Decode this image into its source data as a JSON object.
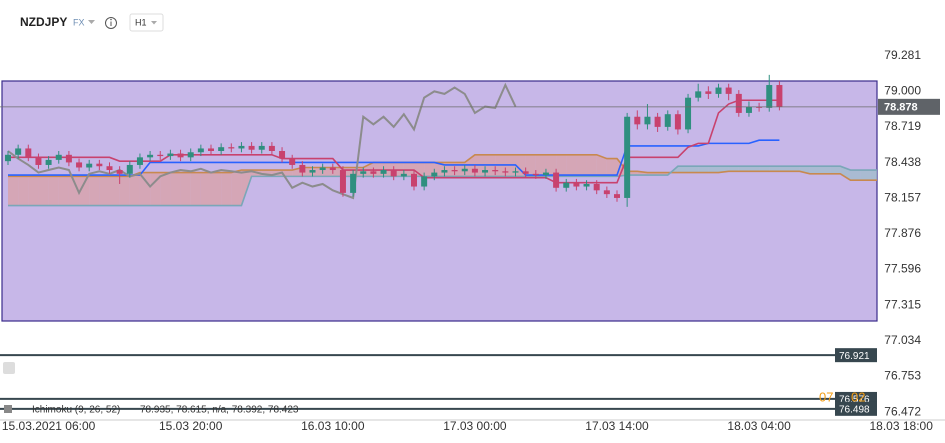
{
  "chart_data": {
    "type": "candlestick",
    "symbol": "NZDJPY",
    "market": "FX",
    "timeframe": "H1",
    "indicator_label": "Ichimoku (9, 26, 52)",
    "indicator_values": "78.935, 78.615, n/a, 78.392, 78.423",
    "countdown": [
      "07",
      "02"
    ],
    "last_price": 78.878,
    "other_levels": [
      76.921,
      76.576,
      76.498
    ],
    "ylim": [
      76.41,
      79.72
    ],
    "yticks": [
      79.281,
      {
        "value": 79.0,
        "label": "79.000"
      },
      78.719,
      78.438,
      78.157,
      77.876,
      77.596,
      77.315,
      77.034,
      76.753,
      76.472
    ],
    "up_color": "#2f8f7f",
    "down_color": "#c8426e",
    "cloud_colors": [
      "#d9a0a6",
      "#9fbccb"
    ],
    "categories": [
      null,
      null,
      null,
      null,
      "15.03.2021 06:00",
      null,
      null,
      null,
      null,
      null,
      null,
      null,
      null,
      null,
      null,
      null,
      null,
      null,
      "15.03 20:00",
      null,
      null,
      null,
      null,
      null,
      null,
      null,
      null,
      null,
      null,
      null,
      null,
      null,
      "16.03 10:00",
      null,
      null,
      null,
      null,
      null,
      null,
      null,
      null,
      null,
      null,
      null,
      null,
      null,
      "17.03 00:00",
      null,
      null,
      null,
      null,
      null,
      null,
      null,
      null,
      null,
      null,
      null,
      null,
      null,
      "17.03 14:00",
      null,
      null,
      null,
      null,
      null,
      null,
      null,
      null,
      null,
      null,
      null,
      null,
      null,
      "18.03 04:00",
      null,
      null,
      null,
      null,
      null,
      null,
      null,
      null,
      null,
      null,
      null,
      null,
      null,
      "18.03 18:00"
    ],
    "open": [
      78.45,
      78.5,
      78.55,
      78.48,
      78.42,
      78.46,
      78.5,
      78.44,
      78.4,
      78.43,
      78.41,
      78.38,
      78.35,
      78.42,
      78.48,
      78.5,
      78.49,
      78.51,
      78.48,
      78.52,
      78.55,
      78.53,
      78.56,
      78.55,
      78.57,
      78.54,
      78.57,
      78.53,
      78.47,
      78.42,
      78.36,
      78.38,
      78.4,
      78.38,
      78.2,
      78.35,
      78.37,
      78.35,
      78.38,
      78.33,
      78.35,
      78.25,
      78.33,
      78.36,
      78.38,
      78.37,
      78.39,
      78.36,
      78.38,
      78.37,
      78.36,
      78.37,
      78.35,
      78.34,
      78.36,
      78.24,
      78.28,
      78.25,
      78.27,
      78.22,
      78.19,
      78.16,
      78.8,
      78.74,
      78.8,
      78.72,
      78.82,
      78.7,
      78.95,
      79.0,
      78.98,
      79.03,
      78.98,
      78.83,
      78.88,
      78.87,
      79.05,
      null,
      null,
      null,
      null,
      null,
      null,
      null,
      null,
      null,
      null,
      null,
      null
    ],
    "high": [
      78.53,
      78.58,
      78.58,
      78.51,
      78.49,
      78.53,
      78.53,
      78.47,
      78.46,
      78.46,
      78.44,
      78.41,
      78.45,
      78.51,
      78.53,
      78.53,
      78.54,
      78.54,
      78.55,
      78.58,
      78.58,
      78.59,
      78.59,
      78.6,
      78.6,
      78.6,
      78.6,
      78.56,
      78.5,
      78.45,
      78.41,
      78.43,
      78.43,
      78.41,
      78.38,
      78.4,
      78.4,
      78.41,
      78.41,
      78.38,
      78.38,
      78.36,
      78.39,
      78.41,
      78.41,
      78.42,
      78.42,
      78.41,
      78.41,
      78.4,
      78.4,
      78.4,
      78.38,
      78.39,
      78.39,
      78.31,
      78.31,
      78.3,
      78.3,
      78.25,
      78.22,
      78.83,
      78.85,
      78.9,
      78.83,
      78.85,
      78.85,
      78.98,
      79.06,
      79.04,
      79.06,
      79.06,
      79.01,
      78.92,
      78.91,
      79.13,
      79.08,
      null,
      null,
      null,
      null,
      null,
      null,
      null,
      null,
      null,
      null,
      null,
      null
    ],
    "low": [
      78.42,
      78.47,
      78.45,
      78.39,
      78.39,
      78.43,
      78.41,
      78.37,
      78.37,
      78.38,
      78.35,
      78.27,
      78.32,
      78.39,
      78.45,
      78.46,
      78.46,
      78.45,
      78.45,
      78.49,
      78.5,
      78.5,
      78.52,
      78.52,
      78.51,
      78.51,
      78.5,
      78.44,
      78.39,
      78.33,
      78.33,
      78.35,
      78.35,
      78.17,
      78.17,
      78.32,
      78.32,
      78.32,
      78.3,
      78.3,
      78.22,
      78.22,
      78.3,
      78.33,
      78.34,
      78.34,
      78.33,
      78.33,
      78.34,
      78.33,
      78.33,
      78.32,
      78.31,
      78.31,
      78.21,
      78.21,
      78.22,
      78.22,
      78.19,
      78.16,
      78.13,
      78.09,
      78.7,
      78.7,
      78.68,
      78.69,
      78.66,
      78.67,
      78.92,
      78.94,
      78.95,
      78.93,
      78.8,
      78.8,
      78.84,
      78.84,
      78.85,
      null,
      null,
      null,
      null,
      null,
      null,
      null,
      null,
      null,
      null,
      null,
      null
    ],
    "close": [
      78.5,
      78.55,
      78.48,
      78.42,
      78.46,
      78.5,
      78.44,
      78.4,
      78.43,
      78.41,
      78.38,
      78.35,
      78.42,
      78.48,
      78.5,
      78.49,
      78.51,
      78.48,
      78.52,
      78.55,
      78.53,
      78.56,
      78.55,
      78.57,
      78.54,
      78.57,
      78.53,
      78.47,
      78.42,
      78.36,
      78.38,
      78.4,
      78.38,
      78.2,
      78.35,
      78.37,
      78.35,
      78.38,
      78.33,
      78.35,
      78.25,
      78.33,
      78.36,
      78.38,
      78.37,
      78.39,
      78.36,
      78.38,
      78.37,
      78.36,
      78.37,
      78.35,
      78.34,
      78.36,
      78.24,
      78.28,
      78.25,
      78.27,
      78.22,
      78.19,
      78.16,
      78.8,
      78.74,
      78.8,
      78.72,
      78.82,
      78.7,
      78.95,
      79.0,
      78.98,
      79.03,
      78.98,
      78.83,
      78.88,
      78.87,
      79.05,
      78.88,
      null,
      null,
      null,
      null,
      null,
      null,
      null,
      null,
      null,
      null,
      null,
      null
    ],
    "series": [
      {
        "color": "#c8426e",
        "values": [
          78.48,
          78.48,
          78.48,
          78.48,
          78.48,
          78.48,
          78.48,
          78.48,
          78.48,
          78.48,
          78.48,
          78.45,
          78.45,
          78.45,
          78.45,
          78.45,
          78.5,
          78.5,
          78.5,
          78.5,
          78.5,
          78.5,
          78.5,
          78.5,
          78.5,
          78.5,
          78.5,
          78.47,
          78.47,
          78.47,
          78.47,
          78.47,
          78.47,
          78.38,
          78.38,
          78.38,
          78.38,
          78.38,
          78.38,
          78.38,
          78.38,
          78.32,
          78.32,
          78.32,
          78.32,
          78.32,
          78.32,
          78.32,
          78.32,
          78.32,
          78.32,
          78.32,
          78.32,
          78.32,
          78.28,
          78.28,
          78.28,
          78.28,
          78.28,
          78.28,
          78.28,
          78.48,
          78.48,
          78.48,
          78.48,
          78.48,
          78.48,
          78.56,
          78.59,
          78.59,
          78.83,
          78.9,
          78.93,
          78.93,
          78.93,
          78.93,
          78.93,
          null,
          null,
          null,
          null,
          null,
          null,
          null,
          null,
          null,
          null,
          null,
          null
        ]
      },
      {
        "color": "#2962ff",
        "values": [
          78.34,
          78.34,
          78.34,
          78.34,
          78.34,
          78.34,
          78.34,
          78.34,
          78.34,
          78.34,
          78.34,
          78.34,
          78.34,
          78.34,
          78.44,
          78.44,
          78.44,
          78.44,
          78.44,
          78.44,
          78.44,
          78.44,
          78.44,
          78.44,
          78.44,
          78.44,
          78.44,
          78.44,
          78.44,
          78.44,
          78.44,
          78.44,
          78.44,
          78.44,
          78.44,
          78.44,
          78.44,
          78.44,
          78.44,
          78.44,
          78.44,
          78.44,
          78.44,
          78.42,
          78.42,
          78.42,
          78.42,
          78.42,
          78.42,
          78.42,
          78.42,
          78.34,
          78.34,
          78.34,
          78.34,
          78.34,
          78.34,
          78.34,
          78.34,
          78.34,
          78.34,
          78.57,
          78.57,
          78.57,
          78.57,
          78.57,
          78.57,
          78.57,
          78.57,
          78.59,
          78.59,
          78.59,
          78.59,
          78.59,
          78.615,
          78.615,
          78.615,
          null,
          null,
          null,
          null,
          null,
          null,
          null,
          null,
          null,
          null,
          null,
          null
        ]
      },
      {
        "color": "#8c8c8c",
        "values": [
          78.53,
          78.47,
          78.42,
          78.36,
          78.38,
          78.4,
          78.38,
          78.2,
          78.35,
          78.37,
          78.35,
          78.38,
          78.33,
          78.35,
          78.25,
          78.33,
          78.36,
          78.38,
          78.37,
          78.39,
          78.36,
          78.38,
          78.37,
          78.36,
          78.37,
          78.35,
          78.34,
          78.36,
          78.24,
          78.28,
          78.25,
          78.27,
          78.22,
          78.19,
          78.16,
          78.8,
          78.74,
          78.8,
          78.72,
          78.82,
          78.7,
          78.95,
          79.0,
          78.98,
          79.03,
          78.98,
          78.83,
          78.88,
          78.87,
          79.05,
          78.88,
          null,
          null,
          null,
          null,
          null,
          null,
          null,
          null,
          null,
          null,
          null,
          null,
          null,
          null,
          null,
          null,
          null,
          null,
          null,
          null,
          null,
          null,
          null,
          null,
          null,
          null,
          null,
          null,
          null,
          null,
          null,
          null,
          null,
          null,
          null,
          null,
          null,
          null
        ]
      },
      {
        "color": "#c8894f",
        "values": [
          78.33,
          78.33,
          78.33,
          78.33,
          78.33,
          78.33,
          78.33,
          78.33,
          78.33,
          78.33,
          78.33,
          78.33,
          78.33,
          78.36,
          78.36,
          78.36,
          78.36,
          78.36,
          78.36,
          78.36,
          78.36,
          78.36,
          78.36,
          78.38,
          78.38,
          78.38,
          78.38,
          78.38,
          78.38,
          78.4,
          78.4,
          78.4,
          78.4,
          78.4,
          78.4,
          78.4,
          78.44,
          78.44,
          78.44,
          78.44,
          78.44,
          78.44,
          78.44,
          78.44,
          78.44,
          78.44,
          78.5,
          78.5,
          78.5,
          78.5,
          78.5,
          78.5,
          78.5,
          78.5,
          78.5,
          78.5,
          78.5,
          78.5,
          78.5,
          78.47,
          78.47,
          78.37,
          78.37,
          78.36,
          78.36,
          78.36,
          78.36,
          78.36,
          78.36,
          78.36,
          78.36,
          78.37,
          78.37,
          78.37,
          78.37,
          78.37,
          78.37,
          78.37,
          78.37,
          78.35,
          78.35,
          78.35,
          78.35,
          78.3,
          78.3,
          78.3,
          78.3,
          null,
          null
        ]
      },
      {
        "color": "#7aa7b8",
        "values": [
          78.1,
          78.1,
          78.1,
          78.1,
          78.1,
          78.1,
          78.1,
          78.1,
          78.1,
          78.1,
          78.1,
          78.1,
          78.1,
          78.1,
          78.1,
          78.1,
          78.1,
          78.1,
          78.1,
          78.1,
          78.1,
          78.1,
          78.1,
          78.1,
          78.33,
          78.33,
          78.33,
          78.33,
          78.33,
          78.33,
          78.33,
          78.33,
          78.33,
          78.33,
          78.33,
          78.33,
          78.33,
          78.33,
          78.33,
          78.33,
          78.33,
          78.33,
          78.33,
          78.33,
          78.33,
          78.33,
          78.33,
          78.33,
          78.33,
          78.33,
          78.33,
          78.33,
          78.33,
          78.33,
          78.33,
          78.33,
          78.33,
          78.33,
          78.33,
          78.33,
          78.33,
          78.34,
          78.34,
          78.34,
          78.34,
          78.34,
          78.41,
          78.41,
          78.41,
          78.41,
          78.41,
          78.41,
          78.41,
          78.41,
          78.41,
          78.41,
          78.41,
          78.41,
          78.41,
          78.41,
          78.41,
          78.41,
          78.41,
          78.38,
          78.38,
          78.38,
          78.38,
          null,
          null
        ]
      }
    ]
  }
}
